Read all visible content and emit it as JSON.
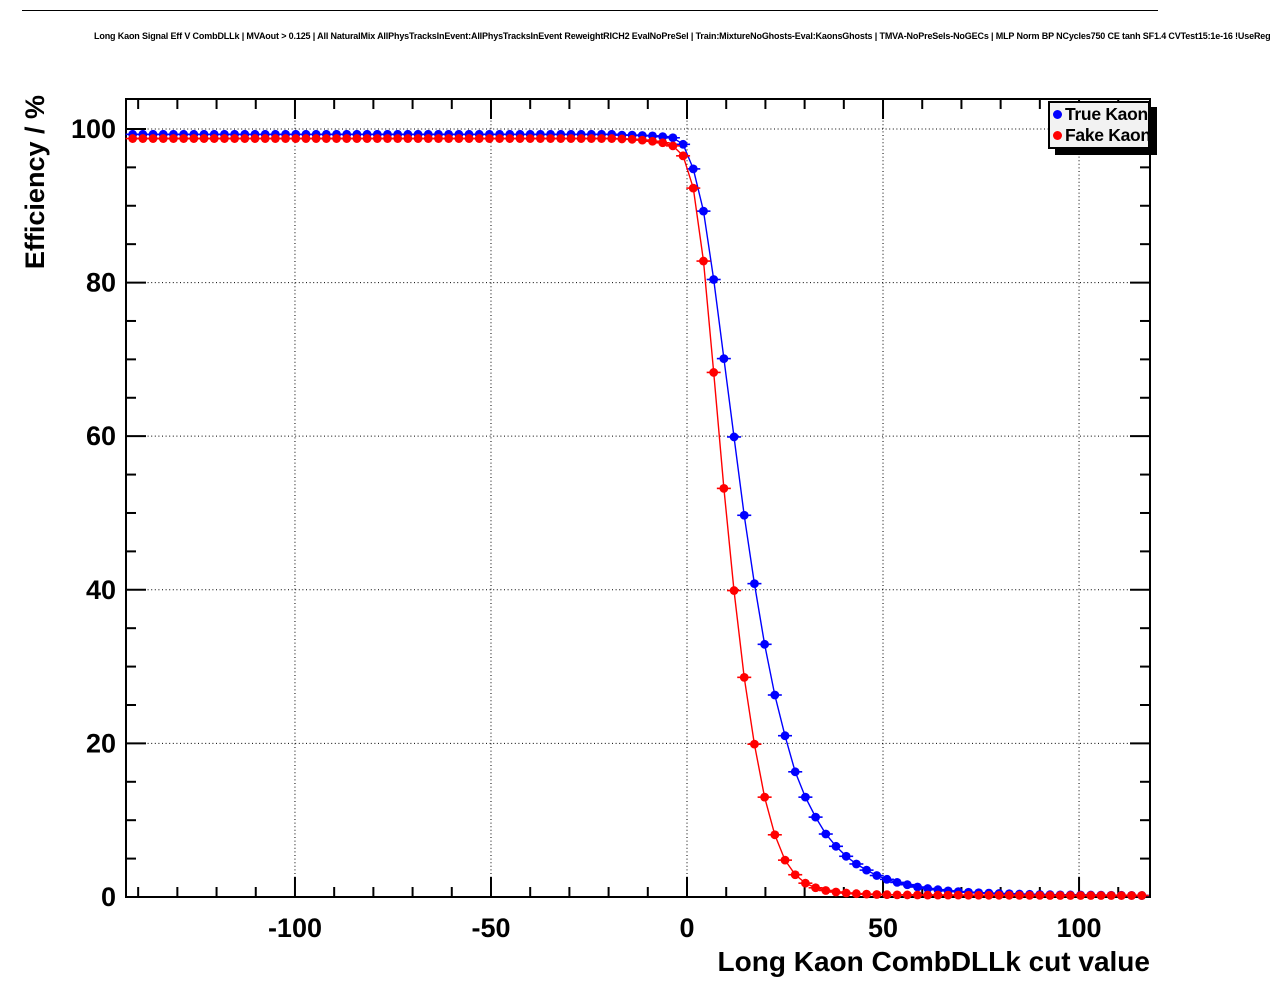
{
  "title": "Long Kaon Signal Eff V CombDLLk | MVAout > 0.125 | All NaturalMix AllPhysTracksInEvent:AllPhysTracksInEvent ReweightRICH2 EvalNoPreSel | Train:MixtureNoGhosts-Eval:KaonsGhosts | TMVA-NoPreSels-NoGECs | MLP Norm BP NCycles750 CE tanh SF1.4 CVTest15:1e-16 !UseReg",
  "legend": {
    "items": [
      {
        "label": "True Kaon",
        "color": "#0000ff"
      },
      {
        "label": "Fake Kaon",
        "color": "#ff0000"
      }
    ]
  },
  "chart_data": {
    "type": "line",
    "title": "Long Kaon Signal Eff V CombDLLk",
    "xlabel": "Long Kaon CombDLLk cut value",
    "ylabel": "Efficiency / %",
    "xlim": [
      -143.1,
      118.1
    ],
    "ylim": [
      0,
      103.9
    ],
    "grid": "dotted-at-major-ticks",
    "legend_position": "top-right",
    "x_ticks": {
      "major": [
        -100,
        -50,
        0,
        50,
        100
      ],
      "minor_step": 10
    },
    "y_ticks": {
      "major": [
        0,
        20,
        40,
        60,
        80,
        100
      ],
      "minor_step": 5
    },
    "x": [
      -141.4,
      -138.8,
      -136.2,
      -133.6,
      -131,
      -128.4,
      -125.8,
      -123.2,
      -120.6,
      -118,
      -115.4,
      -112.8,
      -110.2,
      -107.6,
      -105,
      -102.4,
      -99.8,
      -97.2,
      -94.6,
      -92,
      -89.4,
      -86.8,
      -84.2,
      -81.6,
      -79,
      -76.4,
      -73.8,
      -71.2,
      -68.6,
      -66,
      -63.4,
      -60.8,
      -58.2,
      -55.6,
      -53,
      -50.4,
      -47.8,
      -45.2,
      -42.6,
      -40,
      -37.4,
      -34.8,
      -32.2,
      -29.6,
      -27,
      -24.4,
      -21.8,
      -19.2,
      -16.6,
      -14,
      -11.4,
      -8.8,
      -6.2,
      -3.6,
      -1,
      1.6,
      4.2,
      6.8,
      9.4,
      12,
      14.6,
      17.2,
      19.8,
      22.4,
      25,
      27.6,
      30.2,
      32.8,
      35.4,
      38,
      40.6,
      43.2,
      45.8,
      48.4,
      51,
      53.6,
      56.2,
      58.8,
      61.4,
      64,
      66.6,
      69.2,
      71.8,
      74.4,
      77,
      79.6,
      82.2,
      84.8,
      87.4,
      90,
      92.6,
      95.2,
      97.8,
      100.4,
      103,
      105.6,
      108.2,
      110.8,
      113.4,
      116
    ],
    "series": [
      {
        "name": "True Kaon",
        "color": "#0000ff",
        "marker": "circle",
        "y": [
          99.3,
          99.3,
          99.3,
          99.3,
          99.3,
          99.3,
          99.3,
          99.3,
          99.3,
          99.3,
          99.3,
          99.3,
          99.3,
          99.3,
          99.3,
          99.3,
          99.3,
          99.3,
          99.3,
          99.3,
          99.3,
          99.3,
          99.3,
          99.3,
          99.3,
          99.3,
          99.3,
          99.3,
          99.3,
          99.3,
          99.3,
          99.3,
          99.3,
          99.3,
          99.3,
          99.3,
          99.3,
          99.3,
          99.3,
          99.3,
          99.3,
          99.3,
          99.3,
          99.3,
          99.3,
          99.3,
          99.3,
          99.3,
          99.2,
          99.2,
          99.15,
          99.1,
          99.0,
          98.85,
          98.0,
          94.8,
          89.3,
          80.4,
          70.1,
          59.9,
          49.7,
          40.8,
          32.9,
          26.3,
          21.0,
          16.3,
          13.0,
          10.4,
          8.2,
          6.6,
          5.3,
          4.3,
          3.5,
          2.8,
          2.3,
          1.9,
          1.6,
          1.3,
          1.1,
          0.95,
          0.8,
          0.7,
          0.62,
          0.55,
          0.5,
          0.45,
          0.42,
          0.38,
          0.35,
          0.33,
          0.3,
          0.28,
          0.27,
          0.26,
          0.25,
          0.24,
          0.23,
          0.22,
          0.21,
          0.2
        ]
      },
      {
        "name": "Fake Kaon",
        "color": "#ff0000",
        "marker": "circle",
        "y": [
          98.75,
          98.75,
          98.75,
          98.75,
          98.75,
          98.75,
          98.75,
          98.75,
          98.75,
          98.75,
          98.75,
          98.75,
          98.75,
          98.75,
          98.75,
          98.75,
          98.75,
          98.75,
          98.75,
          98.75,
          98.75,
          98.75,
          98.75,
          98.75,
          98.75,
          98.75,
          98.75,
          98.75,
          98.75,
          98.75,
          98.75,
          98.75,
          98.75,
          98.75,
          98.75,
          98.75,
          98.75,
          98.75,
          98.75,
          98.75,
          98.75,
          98.75,
          98.75,
          98.75,
          98.75,
          98.75,
          98.75,
          98.75,
          98.7,
          98.65,
          98.55,
          98.4,
          98.2,
          97.8,
          96.5,
          92.3,
          82.8,
          68.3,
          53.2,
          39.9,
          28.6,
          19.9,
          13.0,
          8.1,
          4.8,
          2.9,
          1.8,
          1.2,
          0.85,
          0.65,
          0.52,
          0.43,
          0.37,
          0.33,
          0.3,
          0.28,
          0.27,
          0.26,
          0.25,
          0.25,
          0.24,
          0.24,
          0.23,
          0.23,
          0.22,
          0.22,
          0.22,
          0.21,
          0.21,
          0.21,
          0.2,
          0.2,
          0.2,
          0.2,
          0.2,
          0.2,
          0.2,
          0.2,
          0.2,
          0.2
        ]
      }
    ]
  }
}
